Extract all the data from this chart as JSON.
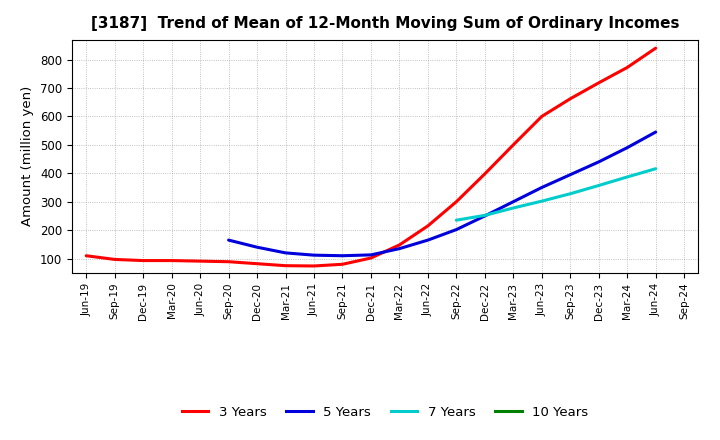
{
  "title": "[3187]  Trend of Mean of 12-Month Moving Sum of Ordinary Incomes",
  "ylabel": "Amount (million yen)",
  "background_color": "#ffffff",
  "grid_color": "#999999",
  "x_labels": [
    "Jun-19",
    "Sep-19",
    "Dec-19",
    "Mar-20",
    "Jun-20",
    "Sep-20",
    "Dec-20",
    "Mar-21",
    "Jun-21",
    "Sep-21",
    "Dec-21",
    "Mar-22",
    "Jun-22",
    "Sep-22",
    "Dec-22",
    "Mar-23",
    "Jun-23",
    "Sep-23",
    "Dec-23",
    "Mar-24",
    "Jun-24",
    "Sep-24"
  ],
  "ylim": [
    50,
    870
  ],
  "yticks": [
    100,
    200,
    300,
    400,
    500,
    600,
    700,
    800
  ],
  "series": [
    {
      "label": "3 Years",
      "color": "#ff0000",
      "data": [
        110,
        97,
        93,
        93,
        91,
        89,
        82,
        75,
        74,
        80,
        102,
        148,
        215,
        300,
        398,
        500,
        600,
        662,
        718,
        772,
        840,
        null
      ]
    },
    {
      "label": "5 Years",
      "color": "#0000dd",
      "data": [
        null,
        null,
        null,
        null,
        null,
        165,
        140,
        120,
        112,
        110,
        113,
        135,
        165,
        202,
        250,
        300,
        350,
        395,
        440,
        490,
        545,
        null
      ]
    },
    {
      "label": "7 Years",
      "color": "#00cccc",
      "data": [
        null,
        null,
        null,
        null,
        null,
        null,
        null,
        null,
        null,
        null,
        null,
        null,
        null,
        235,
        252,
        278,
        302,
        328,
        357,
        387,
        416,
        null
      ]
    },
    {
      "label": "10 Years",
      "color": "#008000",
      "data": [
        null,
        null,
        null,
        null,
        null,
        null,
        null,
        null,
        null,
        null,
        null,
        null,
        null,
        null,
        null,
        null,
        null,
        null,
        null,
        null,
        null,
        null
      ]
    }
  ],
  "legend_colors": [
    "#ff0000",
    "#0000dd",
    "#00cccc",
    "#008000"
  ],
  "legend_labels": [
    "3 Years",
    "5 Years",
    "7 Years",
    "10 Years"
  ]
}
